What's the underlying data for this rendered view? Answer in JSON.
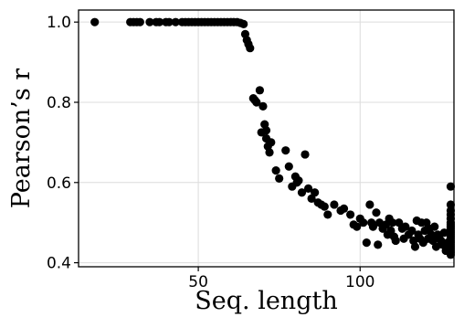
{
  "chart_data": {
    "type": "scatter",
    "xlabel": "Seq. length",
    "ylabel": "Pearson’s r",
    "xlim": [
      13,
      129
    ],
    "ylim": [
      0.39,
      1.03
    ],
    "xticks": [
      50,
      100
    ],
    "yticks": [
      0.4,
      0.6,
      0.8,
      1.0
    ],
    "xtick_labels": [
      "50",
      "100"
    ],
    "ytick_labels": [
      "0.4",
      "0.6",
      "0.8",
      "1.0"
    ],
    "grid": true,
    "legend": "none",
    "marker_color": "#000000",
    "points": [
      [
        18,
        1.0
      ],
      [
        29,
        1.0
      ],
      [
        30,
        1.0
      ],
      [
        31,
        1.0
      ],
      [
        32,
        1.0
      ],
      [
        35,
        1.0
      ],
      [
        37,
        1.0
      ],
      [
        38,
        1.0
      ],
      [
        40,
        1.0
      ],
      [
        41,
        1.0
      ],
      [
        43,
        1.0
      ],
      [
        45,
        1.0
      ],
      [
        46,
        1.0
      ],
      [
        47,
        1.0
      ],
      [
        48,
        1.0
      ],
      [
        49,
        1.0
      ],
      [
        50,
        1.0
      ],
      [
        51,
        1.0
      ],
      [
        52,
        1.0
      ],
      [
        53,
        1.0
      ],
      [
        54,
        1.0
      ],
      [
        55,
        1.0
      ],
      [
        56,
        1.0
      ],
      [
        57,
        1.0
      ],
      [
        58,
        1.0
      ],
      [
        59,
        1.0
      ],
      [
        60,
        1.0
      ],
      [
        61,
        1.0
      ],
      [
        62,
        1.0
      ],
      [
        63,
        0.998
      ],
      [
        64,
        0.995
      ],
      [
        64.5,
        0.97
      ],
      [
        65,
        0.955
      ],
      [
        65.5,
        0.945
      ],
      [
        66,
        0.935
      ],
      [
        67,
        0.81
      ],
      [
        67.5,
        0.805
      ],
      [
        68,
        0.8
      ],
      [
        69,
        0.83
      ],
      [
        70,
        0.79
      ],
      [
        70.5,
        0.745
      ],
      [
        69.5,
        0.725
      ],
      [
        71,
        0.73
      ],
      [
        71,
        0.71
      ],
      [
        71.5,
        0.69
      ],
      [
        72,
        0.675
      ],
      [
        72.5,
        0.7
      ],
      [
        74,
        0.63
      ],
      [
        75,
        0.61
      ],
      [
        77,
        0.68
      ],
      [
        78,
        0.64
      ],
      [
        79,
        0.59
      ],
      [
        80,
        0.615
      ],
      [
        80.5,
        0.6
      ],
      [
        81,
        0.605
      ],
      [
        82,
        0.575
      ],
      [
        83,
        0.67
      ],
      [
        84,
        0.585
      ],
      [
        85,
        0.56
      ],
      [
        86,
        0.575
      ],
      [
        87,
        0.55
      ],
      [
        88,
        0.545
      ],
      [
        89,
        0.54
      ],
      [
        90,
        0.52
      ],
      [
        92,
        0.545
      ],
      [
        94,
        0.53
      ],
      [
        95,
        0.535
      ],
      [
        97,
        0.52
      ],
      [
        98,
        0.495
      ],
      [
        99,
        0.49
      ],
      [
        100,
        0.51
      ],
      [
        101,
        0.5
      ],
      [
        102,
        0.45
      ],
      [
        103,
        0.545
      ],
      [
        103.5,
        0.5
      ],
      [
        104,
        0.49
      ],
      [
        105,
        0.525
      ],
      [
        105.5,
        0.445
      ],
      [
        106,
        0.5
      ],
      [
        107,
        0.485
      ],
      [
        108,
        0.495
      ],
      [
        108.5,
        0.47
      ],
      [
        109,
        0.51
      ],
      [
        109.5,
        0.48
      ],
      [
        110,
        0.5
      ],
      [
        110.5,
        0.465
      ],
      [
        111,
        0.455
      ],
      [
        112,
        0.5
      ],
      [
        113,
        0.485
      ],
      [
        113.5,
        0.46
      ],
      [
        114,
        0.49
      ],
      [
        115,
        0.47
      ],
      [
        116,
        0.48
      ],
      [
        116.5,
        0.455
      ],
      [
        117,
        0.44
      ],
      [
        117.5,
        0.505
      ],
      [
        118,
        0.47
      ],
      [
        118.5,
        0.46
      ],
      [
        119,
        0.5
      ],
      [
        119.5,
        0.45
      ],
      [
        120,
        0.48
      ],
      [
        120.5,
        0.5
      ],
      [
        121,
        0.46
      ],
      [
        121.5,
        0.485
      ],
      [
        122,
        0.47
      ],
      [
        122.5,
        0.455
      ],
      [
        123,
        0.49
      ],
      [
        123.5,
        0.44
      ],
      [
        124,
        0.47
      ],
      [
        124.5,
        0.46
      ],
      [
        125,
        0.455
      ],
      [
        125.5,
        0.445
      ],
      [
        126,
        0.475
      ],
      [
        126.5,
        0.43
      ],
      [
        127,
        0.45
      ],
      [
        128,
        0.59
      ],
      [
        128,
        0.545
      ],
      [
        128,
        0.53
      ],
      [
        128,
        0.52
      ],
      [
        128,
        0.51
      ],
      [
        128,
        0.5
      ],
      [
        128,
        0.495
      ],
      [
        128,
        0.49
      ],
      [
        128,
        0.485
      ],
      [
        128,
        0.48
      ],
      [
        128,
        0.475
      ],
      [
        128,
        0.47
      ],
      [
        128,
        0.465
      ],
      [
        128,
        0.46
      ],
      [
        128,
        0.455
      ],
      [
        128,
        0.45
      ],
      [
        128,
        0.445
      ],
      [
        128,
        0.44
      ],
      [
        128,
        0.435
      ],
      [
        128,
        0.43
      ],
      [
        128,
        0.425
      ],
      [
        128,
        0.42
      ]
    ]
  }
}
